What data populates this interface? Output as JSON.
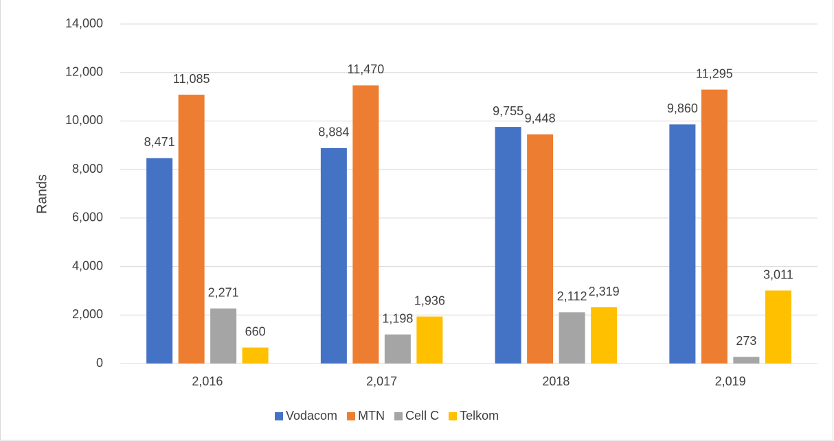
{
  "chart_data": {
    "type": "bar",
    "y_label": "Rands",
    "categories": [
      "2,016",
      "2,017",
      "2018",
      "2,019"
    ],
    "series": [
      {
        "name": "Vodacom",
        "color": "#4472c4",
        "values": [
          8471,
          8884,
          9755,
          9860
        ],
        "value_labels": [
          "8,471",
          "8,884",
          "9,755",
          "9,860"
        ]
      },
      {
        "name": "MTN",
        "color": "#ed7d31",
        "values": [
          11085,
          11470,
          9448,
          11295
        ],
        "value_labels": [
          "11,085",
          "11,470",
          "9,448",
          "11,295"
        ]
      },
      {
        "name": "Cell C",
        "color": "#a5a5a5",
        "values": [
          2271,
          1198,
          2112,
          273
        ],
        "value_labels": [
          "2,271",
          "1,198",
          "2,112",
          "273"
        ]
      },
      {
        "name": "Telkom",
        "color": "#ffc000",
        "values": [
          660,
          1936,
          2319,
          3011
        ],
        "value_labels": [
          "660",
          "1,936",
          "2,319",
          "3,011"
        ]
      }
    ],
    "ylim": [
      0,
      14000
    ],
    "yticks": [
      0,
      {
        "value": 2000,
        "label": "2,000"
      },
      {
        "value": 4000,
        "label": "4,000"
      },
      {
        "value": 6000,
        "label": "6,000"
      },
      {
        "value": 8000,
        "label": "8,000"
      },
      {
        "value": 10000,
        "label": "10,000"
      },
      {
        "value": 12000,
        "label": "12,000"
      },
      {
        "value": 14000,
        "label": "14,000"
      }
    ],
    "grid": true,
    "legend": "bottom"
  }
}
